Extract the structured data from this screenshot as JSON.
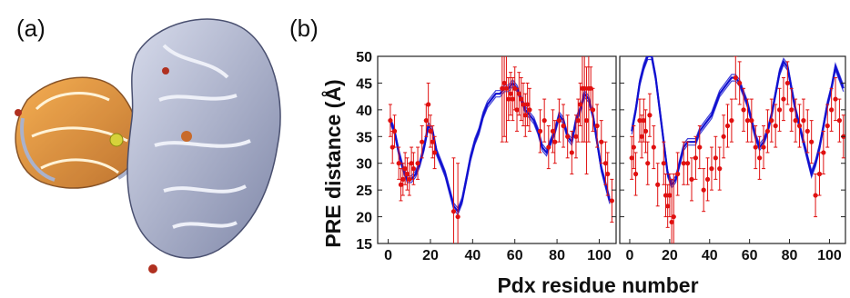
{
  "panels": {
    "a": "(a)",
    "b": "(b)"
  },
  "chart_data": [
    {
      "type": "scatter",
      "ylabel": "PRE distance (Å)",
      "xlabel": "Pdx residue number",
      "xlim": [
        -5,
        108
      ],
      "ylim": [
        15,
        50
      ],
      "xticks": [
        0,
        20,
        40,
        60,
        80,
        100
      ],
      "yticks": [
        15,
        20,
        25,
        30,
        35,
        40,
        45,
        50
      ],
      "series": [
        {
          "role": "model",
          "color": "#1010d0",
          "x": [
            1,
            3,
            5,
            7,
            9,
            11,
            13,
            15,
            17,
            19,
            21,
            23,
            25,
            27,
            29,
            31,
            33,
            35,
            37,
            39,
            41,
            43,
            45,
            47,
            49,
            51,
            53,
            55,
            57,
            59,
            61,
            63,
            65,
            67,
            69,
            71,
            73,
            75,
            77,
            79,
            81,
            83,
            85,
            87,
            89,
            91,
            93,
            95,
            97,
            99,
            101,
            103,
            105
          ],
          "y": [
            38,
            36,
            32,
            29,
            27,
            27,
            28,
            30,
            33,
            37,
            36,
            32,
            30,
            28,
            25,
            22,
            21,
            23,
            27,
            31,
            34,
            36,
            39,
            41,
            42,
            43,
            43,
            44,
            44,
            45,
            44,
            42,
            40,
            39,
            38,
            36,
            33,
            32,
            34,
            36,
            39,
            38,
            35,
            34,
            38,
            40,
            43,
            42,
            39,
            34,
            29,
            26,
            23
          ]
        },
        {
          "role": "measured",
          "color": "#e01010",
          "x": [
            1,
            2,
            3,
            5,
            6,
            7,
            8,
            9,
            10,
            11,
            12,
            14,
            16,
            18,
            19,
            20,
            21,
            22,
            31,
            33,
            54,
            55,
            56,
            57,
            58,
            59,
            60,
            61,
            62,
            63,
            64,
            65,
            66,
            67,
            72,
            74,
            76,
            78,
            79,
            81,
            83,
            85,
            87,
            89,
            90,
            91,
            92,
            93,
            94,
            95,
            96,
            97,
            99,
            101,
            103,
            104,
            106
          ],
          "y": [
            38,
            33,
            36,
            30,
            26,
            27,
            29,
            28,
            27,
            30,
            29,
            30,
            34,
            38,
            41,
            36,
            34,
            32,
            21,
            20,
            44,
            45,
            44,
            42,
            43,
            42,
            44,
            40,
            43,
            42,
            41,
            39,
            41,
            40,
            36,
            38,
            33,
            36,
            34,
            38,
            37,
            35,
            32,
            35,
            38,
            41,
            44,
            44,
            38,
            44,
            44,
            40,
            37,
            34,
            30,
            28,
            23
          ],
          "err": [
            3,
            3,
            3,
            3,
            3,
            3,
            3,
            3,
            3,
            3,
            3,
            3,
            3,
            3,
            4,
            3,
            3,
            3,
            10,
            10,
            10,
            10,
            10,
            4,
            4,
            4,
            4,
            4,
            4,
            4,
            4,
            4,
            4,
            4,
            4,
            4,
            4,
            4,
            4,
            4,
            4,
            4,
            4,
            4,
            4,
            4,
            10,
            10,
            10,
            10,
            4,
            4,
            4,
            4,
            4,
            4,
            4
          ]
        }
      ]
    },
    {
      "type": "scatter",
      "xlim": [
        -5,
        108
      ],
      "ylim": [
        15,
        50
      ],
      "xticks": [
        0,
        20,
        40,
        60,
        80,
        100
      ],
      "series": [
        {
          "role": "model",
          "color": "#1010d0",
          "x": [
            1,
            3,
            5,
            7,
            9,
            11,
            13,
            15,
            17,
            19,
            21,
            23,
            25,
            27,
            29,
            31,
            33,
            35,
            37,
            39,
            41,
            43,
            45,
            47,
            49,
            51,
            53,
            55,
            57,
            59,
            61,
            63,
            65,
            67,
            69,
            71,
            73,
            75,
            77,
            79,
            81,
            83,
            85,
            87,
            89,
            91,
            93,
            95,
            97,
            99,
            101,
            103,
            105,
            107
          ],
          "y": [
            36,
            40,
            45,
            48,
            50,
            50,
            46,
            40,
            34,
            28,
            26,
            27,
            30,
            33,
            34,
            34,
            34,
            36,
            37,
            38,
            39,
            41,
            43,
            44,
            45,
            46,
            46,
            45,
            43,
            41,
            38,
            35,
            33,
            34,
            36,
            39,
            43,
            47,
            49,
            48,
            44,
            40,
            37,
            34,
            31,
            28,
            30,
            33,
            37,
            41,
            44,
            48,
            46,
            44
          ]
        },
        {
          "role": "measured",
          "color": "#e01010",
          "x": [
            1,
            2,
            3,
            5,
            6,
            7,
            8,
            9,
            10,
            12,
            14,
            17,
            18,
            19,
            20,
            21,
            22,
            24,
            27,
            29,
            31,
            33,
            35,
            37,
            39,
            41,
            43,
            45,
            47,
            49,
            51,
            53,
            55,
            57,
            59,
            61,
            63,
            65,
            67,
            69,
            71,
            73,
            75,
            77,
            79,
            81,
            83,
            85,
            87,
            89,
            91,
            93,
            95,
            97,
            99,
            101,
            103,
            105,
            107
          ],
          "y": [
            31,
            33,
            28,
            38,
            35,
            38,
            36,
            30,
            39,
            33,
            26,
            30,
            24,
            22,
            24,
            19,
            20,
            28,
            30,
            30,
            27,
            31,
            33,
            25,
            27,
            29,
            31,
            29,
            35,
            37,
            38,
            46,
            45,
            40,
            38,
            38,
            33,
            31,
            33,
            36,
            38,
            37,
            40,
            42,
            45,
            40,
            38,
            37,
            38,
            36,
            34,
            24,
            28,
            32,
            37,
            40,
            42,
            38,
            35
          ],
          "err": [
            4,
            4,
            4,
            4,
            4,
            4,
            4,
            4,
            4,
            4,
            4,
            4,
            4,
            4,
            4,
            8,
            8,
            4,
            4,
            4,
            4,
            4,
            4,
            4,
            4,
            4,
            4,
            4,
            4,
            4,
            4,
            4,
            4,
            4,
            4,
            4,
            4,
            4,
            4,
            4,
            4,
            4,
            4,
            4,
            4,
            4,
            4,
            4,
            4,
            4,
            4,
            4,
            4,
            4,
            4,
            4,
            4,
            4,
            4
          ]
        }
      ]
    }
  ]
}
